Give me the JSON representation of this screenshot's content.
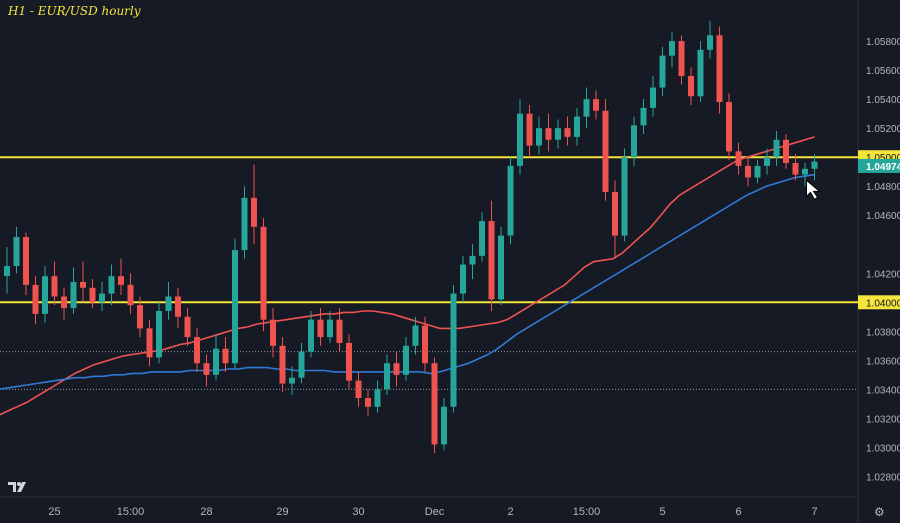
{
  "chart_data": {
    "type": "candlestick",
    "title": "H1 - EUR/USD hourly",
    "y_range": [
      1.0272,
      1.0598
    ],
    "y_ticks": [
      1.028,
      1.03,
      1.032,
      1.034,
      1.036,
      1.038,
      1.042,
      1.046,
      1.048,
      1.052,
      1.054,
      1.056,
      1.058
    ],
    "y_tick_labels": [
      "1.02800",
      "1.03000",
      "1.03200",
      "1.03400",
      "1.03600",
      "1.03800",
      "1.04200",
      "1.04600",
      "1.04800",
      "1.05200",
      "1.05400",
      "1.05600",
      "1.05800"
    ],
    "x_labels": [
      "25",
      "15:00",
      "28",
      "29",
      "30",
      "Dec",
      "2",
      "15:00",
      "5",
      "6",
      "7"
    ],
    "x_label_bars": [
      5,
      13,
      21,
      29,
      37,
      45,
      53,
      61,
      69,
      77,
      85
    ],
    "levels": [
      {
        "value": 1.05,
        "label": "1.05000",
        "color": "#f5e53a"
      },
      {
        "value": 1.04,
        "label": "1.04000",
        "color": "#f5e53a"
      }
    ],
    "last_price": {
      "value": 1.04974,
      "label": "1.04974",
      "color": "#26a69a"
    },
    "dotted_levels": [
      1.0366,
      1.034
    ],
    "grid": false,
    "colors": {
      "up": "#26a69a",
      "down": "#ef5350",
      "sma_red": "#ef5350",
      "sma_blue": "#2f7ad6"
    },
    "ohlc": [
      [
        1.0418,
        1.0438,
        1.0406,
        1.0425
      ],
      [
        1.0425,
        1.0452,
        1.042,
        1.0445
      ],
      [
        1.0445,
        1.0448,
        1.0405,
        1.0412
      ],
      [
        1.0412,
        1.0418,
        1.0385,
        1.0392
      ],
      [
        1.0392,
        1.0425,
        1.0386,
        1.0418
      ],
      [
        1.0418,
        1.0428,
        1.0398,
        1.0404
      ],
      [
        1.0404,
        1.041,
        1.0388,
        1.0396
      ],
      [
        1.0396,
        1.0424,
        1.0392,
        1.0414
      ],
      [
        1.0414,
        1.0428,
        1.04,
        1.041
      ],
      [
        1.041,
        1.0416,
        1.0396,
        1.04
      ],
      [
        1.04,
        1.0414,
        1.0394,
        1.0406
      ],
      [
        1.0406,
        1.0426,
        1.0398,
        1.0418
      ],
      [
        1.0418,
        1.043,
        1.0405,
        1.0412
      ],
      [
        1.0412,
        1.042,
        1.0392,
        1.0398
      ],
      [
        1.0398,
        1.0404,
        1.0376,
        1.0382
      ],
      [
        1.0382,
        1.0388,
        1.0356,
        1.0362
      ],
      [
        1.0362,
        1.04,
        1.0358,
        1.0394
      ],
      [
        1.0394,
        1.0414,
        1.0388,
        1.0404
      ],
      [
        1.0404,
        1.041,
        1.0382,
        1.039
      ],
      [
        1.039,
        1.0396,
        1.037,
        1.0376
      ],
      [
        1.0376,
        1.0382,
        1.0352,
        1.0358
      ],
      [
        1.0358,
        1.0364,
        1.0342,
        1.035
      ],
      [
        1.035,
        1.0378,
        1.0346,
        1.0368
      ],
      [
        1.0368,
        1.0376,
        1.0352,
        1.0358
      ],
      [
        1.0358,
        1.0444,
        1.0354,
        1.0436
      ],
      [
        1.0436,
        1.048,
        1.043,
        1.0472
      ],
      [
        1.0472,
        1.0495,
        1.044,
        1.0452
      ],
      [
        1.0452,
        1.0458,
        1.038,
        1.0388
      ],
      [
        1.0388,
        1.0396,
        1.0362,
        1.037
      ],
      [
        1.037,
        1.0376,
        1.0338,
        1.0344
      ],
      [
        1.0344,
        1.0356,
        1.0336,
        1.0348
      ],
      [
        1.0348,
        1.0372,
        1.0344,
        1.0366
      ],
      [
        1.0366,
        1.0394,
        1.0362,
        1.0388
      ],
      [
        1.0388,
        1.0396,
        1.037,
        1.0376
      ],
      [
        1.0376,
        1.0394,
        1.0372,
        1.0388
      ],
      [
        1.0388,
        1.0396,
        1.0366,
        1.0372
      ],
      [
        1.0372,
        1.0378,
        1.034,
        1.0346
      ],
      [
        1.0346,
        1.0352,
        1.0328,
        1.0334
      ],
      [
        1.0334,
        1.034,
        1.0322,
        1.0328
      ],
      [
        1.0328,
        1.0346,
        1.0324,
        1.034
      ],
      [
        1.034,
        1.0364,
        1.0336,
        1.0358
      ],
      [
        1.0358,
        1.0366,
        1.0342,
        1.035
      ],
      [
        1.035,
        1.0376,
        1.0346,
        1.037
      ],
      [
        1.037,
        1.039,
        1.0364,
        1.0384
      ],
      [
        1.0384,
        1.039,
        1.0352,
        1.0358
      ],
      [
        1.0358,
        1.0362,
        1.0296,
        1.0302
      ],
      [
        1.0302,
        1.0334,
        1.0298,
        1.0328
      ],
      [
        1.0328,
        1.0412,
        1.0324,
        1.0406
      ],
      [
        1.0406,
        1.0432,
        1.04,
        1.0426
      ],
      [
        1.0426,
        1.044,
        1.0416,
        1.0432
      ],
      [
        1.0432,
        1.0462,
        1.0428,
        1.0456
      ],
      [
        1.0456,
        1.047,
        1.0394,
        1.0402
      ],
      [
        1.0402,
        1.0452,
        1.0398,
        1.0446
      ],
      [
        1.0446,
        1.05,
        1.044,
        1.0494
      ],
      [
        1.0494,
        1.054,
        1.0488,
        1.053
      ],
      [
        1.053,
        1.0536,
        1.05,
        1.0508
      ],
      [
        1.0508,
        1.0528,
        1.0502,
        1.052
      ],
      [
        1.052,
        1.053,
        1.0504,
        1.0512
      ],
      [
        1.0512,
        1.0526,
        1.0506,
        1.052
      ],
      [
        1.052,
        1.0528,
        1.0508,
        1.0514
      ],
      [
        1.0514,
        1.0534,
        1.0508,
        1.0528
      ],
      [
        1.0528,
        1.0548,
        1.052,
        1.054
      ],
      [
        1.054,
        1.0546,
        1.0526,
        1.0532
      ],
      [
        1.0532,
        1.054,
        1.047,
        1.0476
      ],
      [
        1.0476,
        1.0484,
        1.043,
        1.0446
      ],
      [
        1.0446,
        1.0506,
        1.0442,
        1.05
      ],
      [
        1.05,
        1.0528,
        1.0494,
        1.0522
      ],
      [
        1.0522,
        1.054,
        1.0516,
        1.0534
      ],
      [
        1.0534,
        1.0556,
        1.0528,
        1.0548
      ],
      [
        1.0548,
        1.0576,
        1.0542,
        1.057
      ],
      [
        1.057,
        1.0586,
        1.0562,
        1.058
      ],
      [
        1.058,
        1.0584,
        1.055,
        1.0556
      ],
      [
        1.0556,
        1.0562,
        1.0536,
        1.0542
      ],
      [
        1.0542,
        1.058,
        1.0538,
        1.0574
      ],
      [
        1.0574,
        1.0594,
        1.0568,
        1.0584
      ],
      [
        1.0584,
        1.059,
        1.053,
        1.0538
      ],
      [
        1.0538,
        1.0544,
        1.0498,
        1.0504
      ],
      [
        1.0504,
        1.051,
        1.0488,
        1.0494
      ],
      [
        1.0494,
        1.05,
        1.048,
        1.0486
      ],
      [
        1.0486,
        1.0498,
        1.0482,
        1.0494
      ],
      [
        1.0494,
        1.0506,
        1.0488,
        1.05
      ],
      [
        1.05,
        1.0518,
        1.0494,
        1.0512
      ],
      [
        1.0512,
        1.0516,
        1.0492,
        1.0496
      ],
      [
        1.0496,
        1.0502,
        1.0484,
        1.0488
      ],
      [
        1.0488,
        1.0496,
        1.048,
        1.0492
      ],
      [
        1.0492,
        1.0502,
        1.0484,
        1.0497
      ]
    ],
    "sma_red": [
      1.0322,
      1.0325,
      1.0328,
      1.0331,
      1.0335,
      1.0339,
      1.0343,
      1.0347,
      1.0351,
      1.0354,
      1.0357,
      1.0359,
      1.0361,
      1.0363,
      1.0364,
      1.0365,
      1.0366,
      1.0367,
      1.0369,
      1.0371,
      1.0372,
      1.0374,
      1.0376,
      1.0378,
      1.038,
      1.0382,
      1.0383,
      1.0385,
      1.0386,
      1.0387,
      1.0388,
      1.0389,
      1.039,
      1.0391,
      1.0392,
      1.0392,
      1.0393,
      1.0393,
      1.0394,
      1.0394,
      1.0393,
      1.0392,
      1.039,
      1.0388,
      1.0386,
      1.0384,
      1.0382,
      1.0382,
      1.0382,
      1.0383,
      1.0384,
      1.0385,
      1.0386,
      1.0388,
      1.0392,
      1.0396,
      1.04,
      1.0404,
      1.0408,
      1.0412,
      1.0418,
      1.0424,
      1.0428,
      1.0429,
      1.043,
      1.0434,
      1.044,
      1.0446,
      1.0452,
      1.046,
      1.0468,
      1.0474,
      1.0478,
      1.0482,
      1.0486,
      1.049,
      1.0494,
      1.0498,
      1.05,
      1.0502,
      1.0504,
      1.0506,
      1.0508,
      1.051,
      1.0512,
      1.0514
    ],
    "sma_blue": [
      1.034,
      1.0341,
      1.0342,
      1.0343,
      1.0344,
      1.0345,
      1.0346,
      1.0347,
      1.0348,
      1.0348,
      1.0349,
      1.0349,
      1.035,
      1.035,
      1.0351,
      1.0351,
      1.0352,
      1.0352,
      1.0352,
      1.0352,
      1.0353,
      1.0353,
      1.0353,
      1.0353,
      1.0354,
      1.0354,
      1.0355,
      1.0355,
      1.0355,
      1.0354,
      1.0354,
      1.0353,
      1.0353,
      1.0353,
      1.0353,
      1.0352,
      1.0352,
      1.0352,
      1.0352,
      1.0352,
      1.0352,
      1.0352,
      1.0352,
      1.0352,
      1.0352,
      1.0351,
      1.0352,
      1.0354,
      1.0356,
      1.0358,
      1.0361,
      1.0364,
      1.0368,
      1.0373,
      1.0378,
      1.0382,
      1.0386,
      1.039,
      1.0394,
      1.0398,
      1.0402,
      1.0406,
      1.041,
      1.0414,
      1.0418,
      1.0422,
      1.0426,
      1.043,
      1.0434,
      1.0438,
      1.0442,
      1.0446,
      1.045,
      1.0454,
      1.0458,
      1.0462,
      1.0466,
      1.047,
      1.0474,
      1.0477,
      1.048,
      1.0482,
      1.0484,
      1.0486,
      1.0487,
      1.0488
    ]
  }
}
